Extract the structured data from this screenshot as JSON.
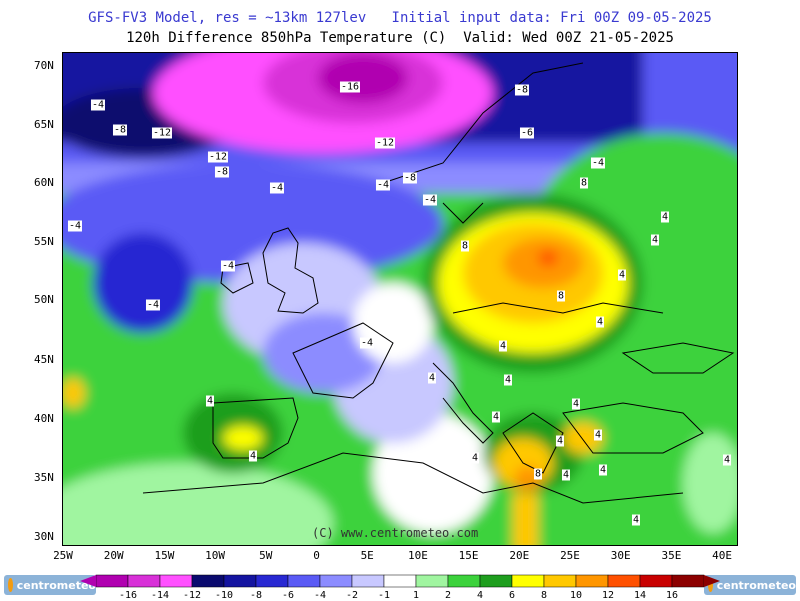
{
  "header": {
    "line1": "GFS-FV3 Model, res = ~13km 127lev   Initial input data: Fri 00Z 09-05-2025",
    "line2": "120h Difference 850hPa Temperature (C)  Valid: Wed 00Z 21-05-2025"
  },
  "axes": {
    "lat_labels": [
      "70N",
      "65N",
      "60N",
      "55N",
      "50N",
      "45N",
      "40N",
      "35N",
      "30N"
    ],
    "lon_labels": [
      "25W",
      "20W",
      "15W",
      "10W",
      "5W",
      "0",
      "5E",
      "10E",
      "15E",
      "20E",
      "25E",
      "30E",
      "35E",
      "40E"
    ]
  },
  "contour_labels": [
    "-16",
    "-12",
    "-12",
    "-12",
    "-8",
    "-8",
    "-8",
    "-8",
    "-6",
    "-4",
    "-4",
    "-4",
    "-4",
    "-4",
    "-4",
    "-4",
    "-4",
    "-4",
    "4",
    "4",
    "4",
    "4",
    "4",
    "4",
    "4",
    "4",
    "4",
    "4",
    "4",
    "4",
    "4",
    "4",
    "4",
    "4",
    "4",
    "4",
    "8",
    "8",
    "8",
    "8"
  ],
  "copyright": "(C) www.centrometeo.com",
  "colorbar": {
    "labels": [
      "-16",
      "-14",
      "-12",
      "-10",
      "-8",
      "-6",
      "-4",
      "-2",
      "-1",
      "1",
      "2",
      "4",
      "6",
      "8",
      "10",
      "12",
      "14",
      "16"
    ],
    "colors": [
      "#b000b0",
      "#d830d8",
      "#ff50ff",
      "#0a0a6e",
      "#1414a0",
      "#2828d2",
      "#5a5af5",
      "#8c8cff",
      "#c8c8ff",
      "#ffffff",
      "#a0f5a0",
      "#3cd23c",
      "#1e9e1e",
      "#ffff00",
      "#ffc800",
      "#ff9600",
      "#ff5000",
      "#c80000",
      "#8c0000"
    ]
  },
  "logos": {
    "left": "centrometeo",
    "right": "centrometeo"
  }
}
